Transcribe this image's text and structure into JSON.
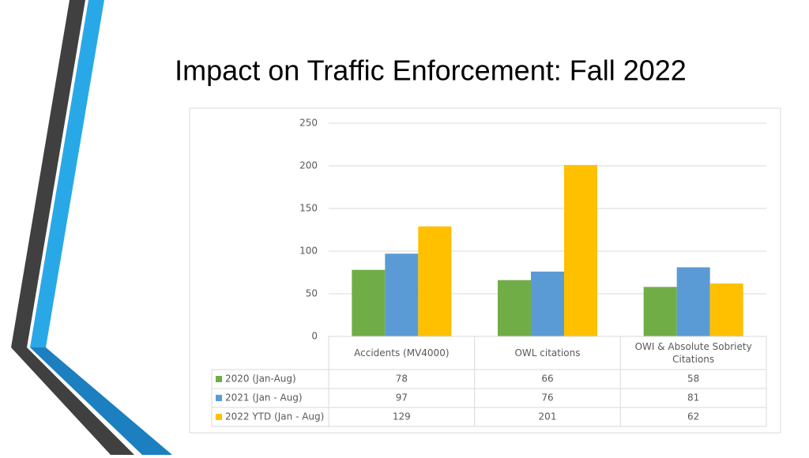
{
  "chart_data": {
    "type": "bar",
    "title": "Impact on Traffic Enforcement: Fall 2022",
    "categories": [
      "Accidents  (MV4000)",
      "OWL citations",
      "OWI & Absolute Sobriety Citations"
    ],
    "series": [
      {
        "name": "2020 (Jan-Aug)",
        "color": "#70ad47",
        "values": [
          78,
          66,
          58
        ]
      },
      {
        "name": "2021 (Jan - Aug)",
        "color": "#5b9bd5",
        "values": [
          97,
          76,
          81
        ]
      },
      {
        "name": "2022 YTD (Jan - Aug)",
        "color": "#ffc000",
        "values": [
          129,
          201,
          62
        ]
      }
    ],
    "ylim": [
      0,
      250
    ],
    "yticks": [
      0,
      50,
      100,
      150,
      200,
      250
    ],
    "grid": true
  }
}
